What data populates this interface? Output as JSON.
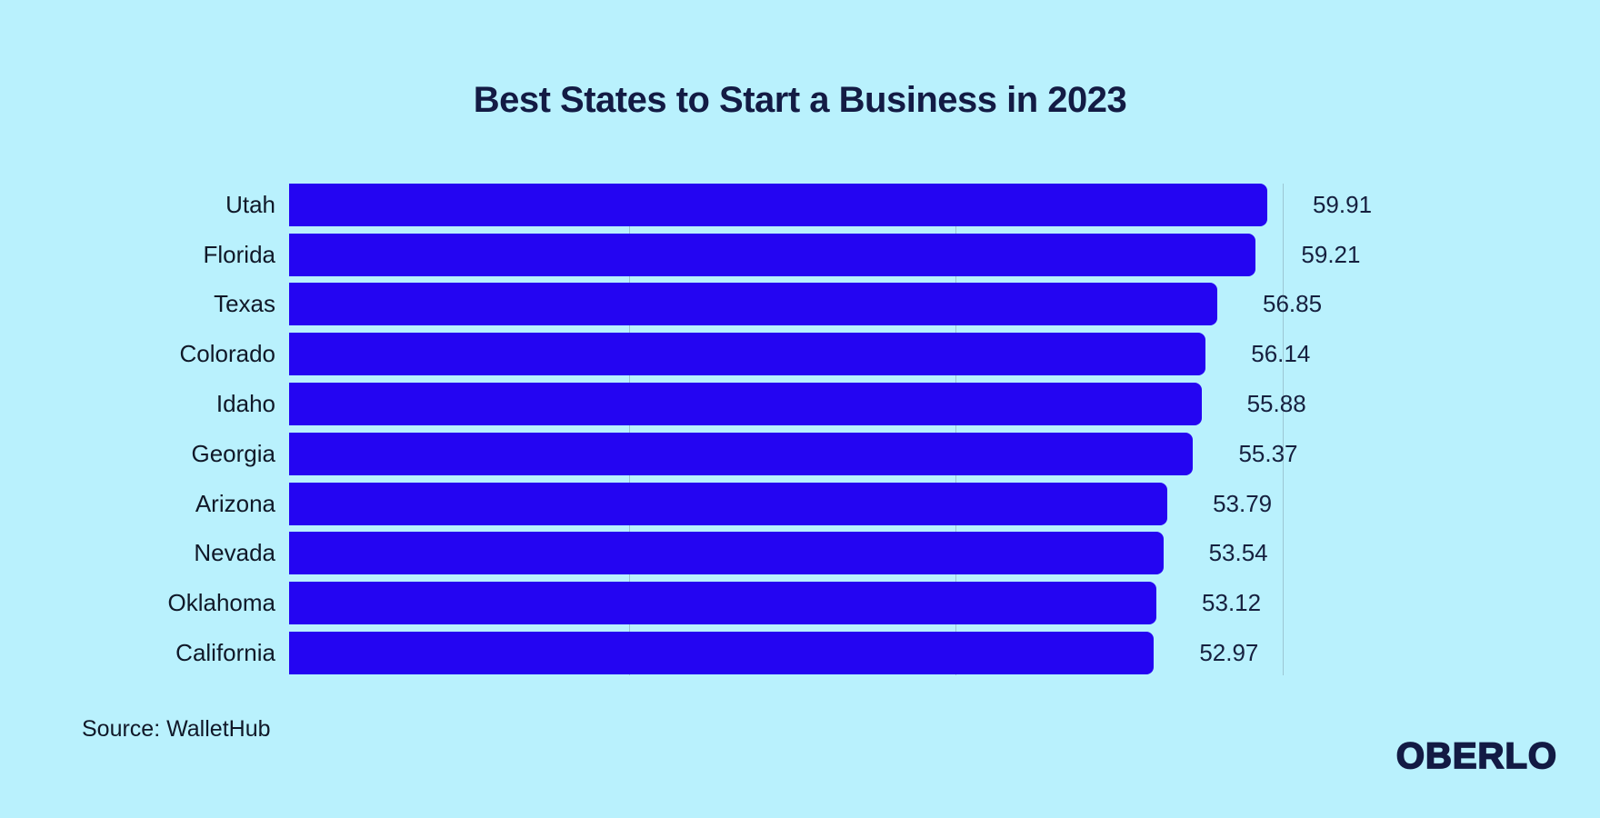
{
  "chart": {
    "title": "Best States to Start a Business in 2023",
    "source": "Source: WalletHub"
  },
  "branding": {
    "logo_text": "OBERLO"
  },
  "colors": {
    "background": "#b9f1fd",
    "bar": "#2405f2",
    "title_text": "#131b44",
    "label_text": "#101828",
    "value_text": "#16203f",
    "gridline": "#85a2b0"
  },
  "chart_data": {
    "type": "bar",
    "orientation": "horizontal",
    "title": "Best States to Start a Business in 2023",
    "xlabel": "",
    "ylabel": "",
    "categories": [
      "Utah",
      "Florida",
      "Texas",
      "Colorado",
      "Idaho",
      "Georgia",
      "Arizona",
      "Nevada",
      "Oklahoma",
      "California"
    ],
    "values": [
      59.91,
      59.21,
      56.85,
      56.14,
      55.88,
      55.37,
      53.79,
      53.54,
      53.12,
      52.97
    ],
    "value_label_format": "2dp",
    "xlim": [
      0,
      60
    ],
    "gridline_values": [
      20,
      40,
      60
    ],
    "legend": null,
    "grid": "vertical-faint",
    "source": "Source: WalletHub"
  }
}
